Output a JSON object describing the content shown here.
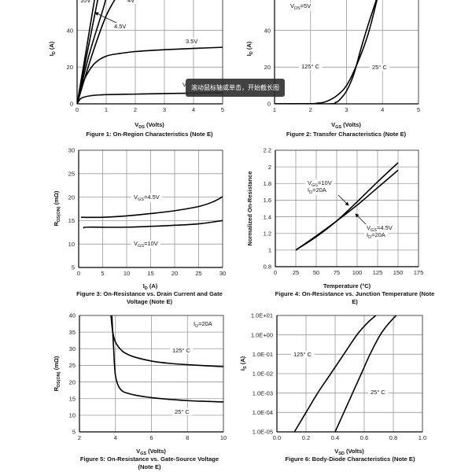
{
  "overlay_tooltip": "滚动鼠标轴或单击，开始截长图",
  "chart_data": [
    {
      "type": "line",
      "title": "Figure 1: On-Region Characteristics (Note E)",
      "xlabel": [
        "V",
        "DS",
        " (Volts)"
      ],
      "ylabel": [
        "I",
        "D",
        " (A)"
      ],
      "xlim": [
        0,
        5
      ],
      "ylim": [
        0,
        60
      ],
      "grid": true,
      "xticks": [
        "0",
        "1",
        "2",
        "3",
        "4",
        "5"
      ],
      "xtick_values": [
        0,
        1,
        2,
        3,
        4,
        5
      ],
      "yticks": [
        "0",
        "20",
        "40"
      ],
      "ytick_values": [
        0,
        20,
        40
      ],
      "series": [
        {
          "name": "10V",
          "x": [
            0,
            0.3,
            0.6,
            0.66
          ],
          "y": [
            0,
            28,
            57,
            62
          ]
        },
        {
          "x": [
            0,
            0.35,
            0.75,
            0.8
          ],
          "y": [
            0,
            28,
            60,
            64
          ]
        },
        {
          "name": "4.5V",
          "x": [
            0,
            0.4,
            0.9,
            1.0,
            1.1
          ],
          "y": [
            0,
            26,
            52,
            58,
            62
          ]
        },
        {
          "name": "4V",
          "x": [
            0,
            0.5,
            1.0,
            1.5
          ],
          "y": [
            0,
            26,
            48,
            62
          ]
        },
        {
          "name": "3.5V",
          "x": [
            0,
            0.15,
            0.3,
            0.6,
            1,
            1.5,
            2,
            3,
            4,
            5
          ],
          "y": [
            0,
            9,
            15,
            22,
            26,
            27.5,
            28.5,
            29.5,
            30.2,
            30.8
          ]
        },
        {
          "x": [
            0,
            0.1,
            0.2,
            0.5,
            1,
            2,
            3,
            5
          ],
          "y": [
            0,
            2.5,
            3.5,
            4.5,
            5,
            5.3,
            5.6,
            6
          ]
        }
      ],
      "annotations": [
        [
          "10V"
        ],
        [
          "4V"
        ],
        [
          "4.5V"
        ],
        [
          "3.5V"
        ],
        [
          "V"
        ]
      ]
    },
    {
      "type": "line",
      "title": "Figure 2: Transfer Characteristics (Note E)",
      "xlabel": [
        "V",
        "GS",
        " (Volts)"
      ],
      "ylabel": [
        "I",
        "D",
        " (A)"
      ],
      "xlim": [
        1,
        5
      ],
      "ylim": [
        0,
        60
      ],
      "grid": true,
      "xticks": [
        "1",
        "2",
        "3",
        "4",
        "5"
      ],
      "xtick_values": [
        1,
        2,
        3,
        4,
        5
      ],
      "yticks": [
        "0",
        "20",
        "40"
      ],
      "ytick_values": [
        0,
        20,
        40
      ],
      "series": [
        {
          "name": "125° C",
          "x": [
            1,
            2,
            2.2,
            2.4,
            2.7,
            3,
            3.3,
            3.6,
            3.85,
            3.9
          ],
          "y": [
            0,
            0.1,
            0.4,
            1,
            4,
            10,
            22,
            38,
            57,
            62
          ]
        },
        {
          "name": "25° C",
          "x": [
            1,
            2.5,
            2.7,
            2.8,
            3.0,
            3.2,
            3.4,
            3.6,
            3.85,
            3.9
          ],
          "y": [
            0,
            0,
            0.8,
            2,
            7,
            16,
            30,
            43,
            58,
            62
          ]
        }
      ],
      "annotations": [
        [
          "V",
          "DS",
          "=5V"
        ],
        [
          "125° C"
        ],
        [
          "25° C"
        ]
      ]
    },
    {
      "type": "line",
      "title": "Figure 3: On-Resistance vs. Drain Current and Gate Voltage (Note E)",
      "xlabel": [
        "I",
        "D",
        " (A)"
      ],
      "ylabel": [
        "R",
        "DS(ON)",
        " (mΩ)"
      ],
      "xlim": [
        0,
        30
      ],
      "ylim": [
        5,
        30
      ],
      "grid": true,
      "xticks": [
        "0",
        "5",
        "10",
        "15",
        "20",
        "25",
        "30"
      ],
      "xtick_values": [
        0,
        5,
        10,
        15,
        20,
        25,
        30
      ],
      "yticks": [
        "5",
        "10",
        "15",
        "20",
        "25",
        "30"
      ],
      "ytick_values": [
        5,
        10,
        15,
        20,
        25,
        30
      ],
      "series": [
        {
          "name": "VGS=4.5V",
          "x": [
            0.5,
            5,
            10,
            15,
            20,
            25,
            28,
            30
          ],
          "y": [
            15.7,
            15.7,
            16,
            16.5,
            17.1,
            18,
            19,
            20.1
          ]
        },
        {
          "name": "VGS=10V",
          "x": [
            1,
            2,
            10,
            20,
            25,
            30
          ],
          "y": [
            13.4,
            13.6,
            13.6,
            14,
            14.3,
            15
          ]
        }
      ],
      "annotations": [
        [
          "V",
          "GS",
          "=4.5V"
        ],
        [
          "V",
          "GS",
          "=10V"
        ]
      ]
    },
    {
      "type": "line",
      "title": "Figure 4: On-Resistance vs. Junction Temperature (Note E)",
      "xlabel": [
        "Temperature (°C)"
      ],
      "ylabel": [
        "Normalized On-Resistance"
      ],
      "xlim": [
        0,
        175
      ],
      "ylim": [
        0.8,
        2.2
      ],
      "grid": true,
      "xticks": [
        "0",
        "25",
        "50",
        "75",
        "100",
        "125",
        "150",
        "175"
      ],
      "xtick_values": [
        0,
        25,
        50,
        75,
        100,
        125,
        150,
        175
      ],
      "yticks": [
        "0.8",
        "1",
        "1.2",
        "1.4",
        "1.6",
        "1.8",
        "2",
        "2.2"
      ],
      "ytick_values": [
        0.8,
        1,
        1.2,
        1.4,
        1.6,
        1.8,
        2,
        2.2
      ],
      "series": [
        {
          "name": "VGS=10V, ID=20A",
          "x": [
            25,
            50,
            75,
            100,
            125,
            150
          ],
          "y": [
            1,
            1.16,
            1.35,
            1.58,
            1.82,
            2.05
          ]
        },
        {
          "name": "VGS=4.5V, ID=20A",
          "x": [
            25,
            50,
            75,
            100,
            125,
            150
          ],
          "y": [
            1,
            1.17,
            1.35,
            1.54,
            1.75,
            1.96
          ]
        }
      ],
      "annotations": [
        [
          "V",
          "GS",
          "=10V"
        ],
        [
          "I",
          "D",
          "=20A"
        ],
        [
          "V",
          "GS",
          "=4.5V"
        ],
        [
          "I",
          "D",
          "=20A"
        ]
      ]
    },
    {
      "type": "line",
      "title": "Figure 5: On-Resistance vs. Gate-Source Voltage (Note E)",
      "xlabel": [
        "V",
        "GS",
        " (Volts)"
      ],
      "ylabel": [
        "R",
        "DS(ON)",
        " (mΩ)"
      ],
      "xlim": [
        2,
        10
      ],
      "ylim": [
        5,
        40
      ],
      "grid": true,
      "xticks": [
        "2",
        "4",
        "6",
        "8",
        "10"
      ],
      "xtick_values": [
        2,
        4,
        6,
        8,
        10
      ],
      "yticks": [
        "5",
        "10",
        "15",
        "20",
        "25",
        "30",
        "35",
        "40"
      ],
      "ytick_values": [
        5,
        10,
        15,
        20,
        25,
        30,
        35,
        40
      ],
      "series": [
        {
          "name": "125° C",
          "x": [
            3.75,
            3.85,
            4,
            4.25,
            4.5,
            5,
            6,
            7,
            8,
            10
          ],
          "y": [
            40,
            35,
            32,
            30,
            28.8,
            27.6,
            26.3,
            25.6,
            25.2,
            24.6
          ]
        },
        {
          "name": "25° C",
          "x": [
            3.8,
            3.9,
            4,
            4.25,
            4.75,
            6,
            8,
            10
          ],
          "y": [
            40,
            30,
            22,
            18,
            16.5,
            15.3,
            14.4,
            14
          ]
        }
      ],
      "annotations": [
        [
          "I",
          "D",
          "=20A"
        ],
        [
          "125° C"
        ],
        [
          "25° C"
        ]
      ]
    },
    {
      "type": "line",
      "title": "Figure 6: Body-Diode Characteristics (Note E)",
      "xlabel": [
        "V",
        "SD",
        " (Volts)"
      ],
      "ylabel": [
        "I",
        "S",
        " (A)"
      ],
      "xlim": [
        0,
        1.0
      ],
      "ylim": [
        1e-05,
        10
      ],
      "yscale": "log",
      "grid": true,
      "xticks": [
        "0.0",
        "0.2",
        "0.4",
        "0.6",
        "0.8",
        "1.0"
      ],
      "xtick_values": [
        0,
        0.2,
        0.4,
        0.6,
        0.8,
        1.0
      ],
      "yticks": [
        "1.0E-05",
        "1.0E-04",
        "1.0E-03",
        "1.0E-02",
        "1.0E-01",
        "1.0E+00",
        "1.0E+01"
      ],
      "ytick_values": [
        1e-05,
        0.0001,
        0.001,
        0.01,
        0.1,
        1,
        10
      ],
      "series": [
        {
          "name": "125° C",
          "x": [
            0.12,
            0.2,
            0.28,
            0.37,
            0.46,
            0.55,
            0.62,
            0.68
          ],
          "y": [
            1e-05,
            0.0001,
            0.001,
            0.01,
            0.1,
            1,
            4,
            10
          ]
        },
        {
          "name": "25° C",
          "x": [
            0.4,
            0.46,
            0.52,
            0.58,
            0.64,
            0.71,
            0.77,
            0.82
          ],
          "y": [
            1e-05,
            0.0001,
            0.001,
            0.01,
            0.1,
            1,
            4,
            10
          ]
        }
      ],
      "annotations": [
        [
          "125° C"
        ],
        [
          "25° C"
        ]
      ]
    }
  ]
}
